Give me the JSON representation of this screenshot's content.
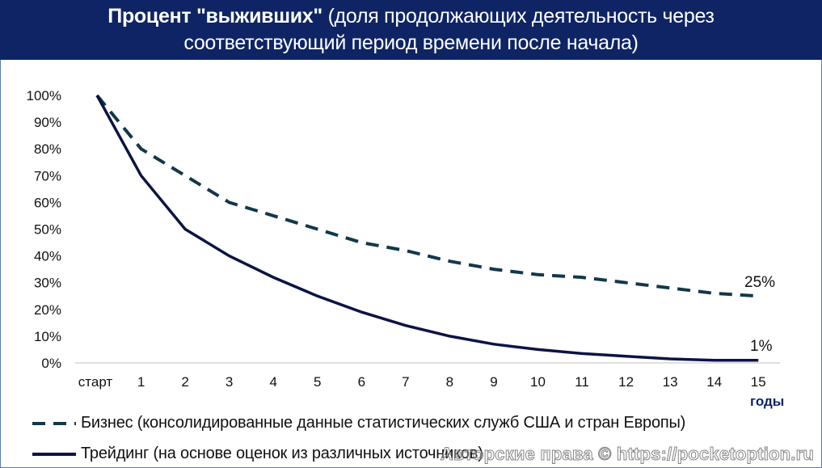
{
  "title": {
    "bold_part": "Процент \"выживших\"",
    "normal_part": " (доля продолжающих деятельность через",
    "line2": "соответствующий период времени после начала)"
  },
  "legend": {
    "business": "Бизнес (консолидированные данные статистических служб США и стран Европы)",
    "trading": "Трейдинг (на основе оценок из различных источников)"
  },
  "watermark": "Авторские права © https://pocketoption.ru",
  "colors": {
    "title_bg": "#0e2465",
    "business_line": "#12384a",
    "trading_line": "#0c1445",
    "axis": "#bfbfbf"
  },
  "chart_data": {
    "type": "line",
    "title": "Процент \"выживших\" (доля продолжающих деятельность через соответствующий период времени после начала)",
    "xlabel": "годы",
    "ylabel": "",
    "categories": [
      "старт",
      "1",
      "2",
      "3",
      "4",
      "5",
      "6",
      "7",
      "8",
      "9",
      "10",
      "11",
      "12",
      "13",
      "14",
      "15"
    ],
    "y_ticks": [
      "0%",
      "10%",
      "20%",
      "30%",
      "40%",
      "50%",
      "60%",
      "70%",
      "80%",
      "90%",
      "100%"
    ],
    "ylim": [
      0,
      100
    ],
    "grid": false,
    "legend_position": "bottom",
    "series": [
      {
        "name": "Бизнес (консолидированные данные статистических служб США и стран Европы)",
        "style": "dashed",
        "values": [
          100,
          80,
          70,
          60,
          55,
          50,
          45,
          42,
          38,
          35,
          33,
          32,
          30,
          28,
          26,
          25
        ],
        "end_label": "25%"
      },
      {
        "name": "Трейдинг (на основе оценок из различных источников)",
        "style": "solid",
        "values": [
          100,
          70,
          50,
          40,
          32,
          25,
          19,
          14,
          10,
          7,
          5,
          3.5,
          2.5,
          1.5,
          1,
          1
        ],
        "end_label": "1%"
      }
    ]
  }
}
